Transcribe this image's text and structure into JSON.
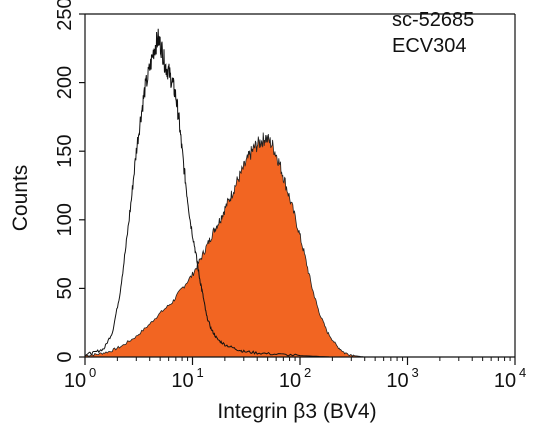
{
  "chart_data": {
    "type": "area",
    "x_scale": "log",
    "xlim": [
      1,
      10000
    ],
    "ylim": [
      0,
      250
    ],
    "xlabel": "Integrin β3 (BV4)",
    "ylabel": "Counts",
    "annotations": [
      "sc-52685",
      "ECV304"
    ],
    "x_ticks": [
      {
        "value": 1,
        "base": "10",
        "exp": "0"
      },
      {
        "value": 10,
        "base": "10",
        "exp": "1"
      },
      {
        "value": 100,
        "base": "10",
        "exp": "2"
      },
      {
        "value": 1000,
        "base": "10",
        "exp": "3"
      },
      {
        "value": 10000,
        "base": "10",
        "exp": "4"
      }
    ],
    "y_ticks": [
      "0",
      "50",
      "100",
      "150",
      "200",
      "250"
    ],
    "y_tick_values": [
      0,
      50,
      100,
      150,
      200,
      250
    ],
    "grid": false,
    "series": [
      {
        "style": "outline",
        "color": "#111111",
        "x": [
          1,
          1.2,
          1.5,
          1.8,
          2.1,
          2.4,
          2.7,
          3.0,
          3.3,
          3.6,
          4.0,
          4.4,
          4.8,
          5.2,
          5.6,
          6.0,
          6.5,
          7.0,
          7.5,
          8.0,
          8.7,
          9.5,
          10.5,
          11.5,
          12.5,
          13.5,
          15,
          17,
          20,
          25,
          30,
          40,
          60,
          100,
          200,
          300
        ],
        "y": [
          2,
          3,
          6,
          18,
          45,
          80,
          115,
          150,
          175,
          195,
          210,
          225,
          232,
          224,
          212,
          208,
          200,
          190,
          172,
          150,
          125,
          100,
          80,
          60,
          45,
          30,
          20,
          13,
          9,
          6,
          4,
          3,
          2,
          1,
          0,
          0
        ]
      },
      {
        "style": "filled",
        "color": "#f26522",
        "x": [
          1,
          1.3,
          1.7,
          2.2,
          3.0,
          4.0,
          5.0,
          6.5,
          8.0,
          10,
          12,
          14,
          16,
          18,
          20,
          23,
          26,
          30,
          34,
          38,
          43,
          48,
          55,
          62,
          70,
          80,
          95,
          110,
          130,
          150,
          180,
          220,
          260,
          320,
          400
        ],
        "y": [
          1,
          2,
          4,
          8,
          15,
          24,
          32,
          40,
          50,
          60,
          72,
          83,
          93,
          100,
          108,
          118,
          128,
          138,
          147,
          153,
          157,
          160,
          155,
          145,
          132,
          116,
          95,
          75,
          50,
          33,
          18,
          8,
          3,
          1,
          0
        ]
      }
    ]
  }
}
